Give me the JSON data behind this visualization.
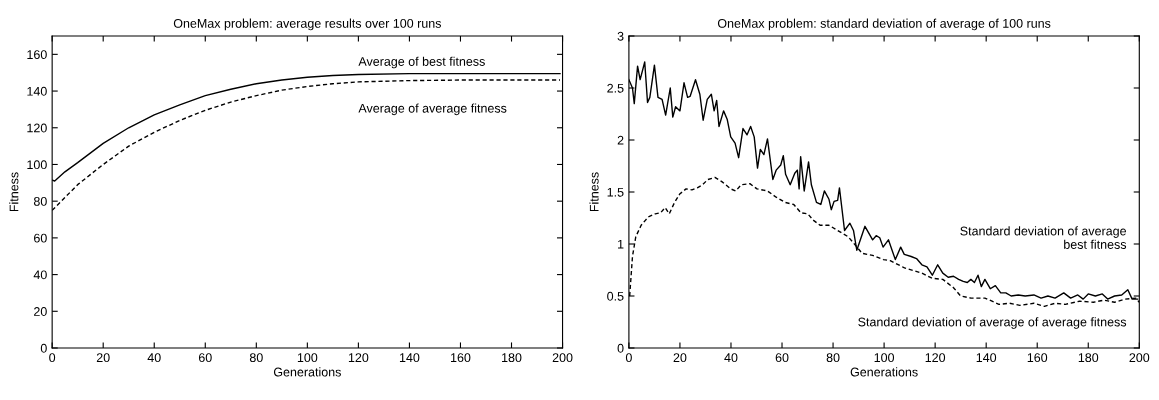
{
  "chart_data": [
    {
      "type": "line",
      "title": "OneMax problem: average results over 100 runs",
      "xlabel": "Generations",
      "ylabel": "Fitness",
      "xlim": [
        0,
        200
      ],
      "xticks": [
        0,
        20,
        40,
        60,
        80,
        100,
        120,
        140,
        160,
        180,
        200
      ],
      "ylim": [
        0,
        170
      ],
      "yticks": [
        0,
        20,
        40,
        60,
        80,
        100,
        120,
        140,
        160
      ],
      "grid": false,
      "legend": "top right",
      "marker": "none",
      "series": [
        {
          "name": "Average of best fitness",
          "color": "#000000",
          "line_style": "solid",
          "x": [
            0,
            1,
            5,
            10,
            20,
            30,
            40,
            50,
            60,
            70,
            80,
            90,
            100,
            110,
            120,
            140,
            160,
            199
          ],
          "values": [
            91.5,
            91,
            96,
            101,
            111.5,
            120,
            127,
            132.5,
            137.5,
            141,
            144,
            146,
            147.5,
            148.5,
            149,
            149.5,
            149.5,
            149.5
          ]
        },
        {
          "name": "Average of average fitness",
          "color": "#000000",
          "line_style": "dashed",
          "x": [
            0,
            5,
            10,
            20,
            30,
            40,
            50,
            60,
            70,
            80,
            90,
            100,
            110,
            120,
            140,
            160,
            199
          ],
          "values": [
            75,
            82,
            89,
            100,
            110,
            117.5,
            124,
            129.5,
            134,
            137.5,
            140.5,
            142.5,
            144,
            145,
            145.7,
            146,
            146
          ]
        }
      ]
    },
    {
      "type": "line",
      "title": "OneMax problem: standard deviation of average of 100 runs",
      "xlabel": "Generations",
      "ylabel": "Fitness",
      "xlim": [
        0,
        200
      ],
      "xticks": [
        0,
        20,
        40,
        60,
        80,
        100,
        120,
        140,
        160,
        180,
        200
      ],
      "ylim": [
        0,
        3
      ],
      "yticks": [
        0,
        0.5,
        1,
        1.5,
        2,
        2.5,
        3
      ],
      "grid": false,
      "legend": "right",
      "marker": "none",
      "series": [
        {
          "name": "Standard deviation of average\nbest fitness",
          "color": "#000000",
          "line_style": "solid",
          "x": [
            0,
            1.4,
            2.1,
            3.4,
            4.4,
            6.2,
            7.3,
            8.2,
            10,
            11.4,
            13,
            14.4,
            16.2,
            17.2,
            18.3,
            20,
            21.6,
            23,
            24,
            26.1,
            27.8,
            29.1,
            30.7,
            32.3,
            33.4,
            34.4,
            35.3,
            37.1,
            38.5,
            39.9,
            41.6,
            43,
            44.7,
            46.3,
            47.7,
            49.1,
            50.4,
            51.5,
            52.9,
            54.3,
            56.4,
            57.7,
            59.5,
            60.5,
            61.4,
            63.2,
            65,
            66,
            66.7,
            67.3,
            68.7,
            70.4,
            71.5,
            73.5,
            75.2,
            76.6,
            78.4,
            79.3,
            80.4,
            81.8,
            82.5,
            84.5,
            86.6,
            88,
            89.3,
            90.7,
            92.5,
            95.5,
            96.9,
            98.3,
            99.6,
            101.7,
            104.4,
            106.5,
            107.9,
            110.6,
            112.7,
            114.8,
            116.8,
            118.9,
            121,
            123,
            125.1,
            127.2,
            129.2,
            131,
            132.6,
            134,
            135.4,
            136.8,
            138.1,
            139.5,
            141.6,
            143.6,
            145.7,
            147.7,
            149.8,
            152.6,
            155.3,
            158.7,
            161.5,
            164.2,
            167,
            170.4,
            173.1,
            175.9,
            178,
            180,
            182.8,
            185.5,
            187.6,
            190.3,
            193.1,
            195.5,
            197.2,
            199.3
          ],
          "values": [
            2.58,
            2.5,
            2.35,
            2.71,
            2.58,
            2.75,
            2.36,
            2.41,
            2.72,
            2.41,
            2.39,
            2.24,
            2.5,
            2.22,
            2.32,
            2.28,
            2.55,
            2.41,
            2.42,
            2.58,
            2.44,
            2.19,
            2.39,
            2.44,
            2.28,
            2.38,
            2.13,
            2.28,
            2.2,
            2.03,
            1.97,
            1.83,
            2.11,
            2.05,
            2.13,
            2.03,
            1.73,
            1.91,
            1.86,
            2.01,
            1.62,
            1.71,
            1.76,
            1.85,
            1.67,
            1.57,
            1.68,
            1.71,
            1.53,
            1.84,
            1.51,
            1.79,
            1.57,
            1.4,
            1.38,
            1.51,
            1.43,
            1.33,
            1.41,
            1.42,
            1.54,
            1.13,
            1.2,
            1.13,
            0.94,
            1.04,
            1.17,
            1.04,
            1.08,
            1.06,
            0.97,
            1.04,
            0.85,
            0.97,
            0.9,
            0.88,
            0.86,
            0.8,
            0.78,
            0.7,
            0.8,
            0.72,
            0.68,
            0.69,
            0.66,
            0.64,
            0.63,
            0.66,
            0.63,
            0.7,
            0.59,
            0.66,
            0.57,
            0.6,
            0.53,
            0.53,
            0.5,
            0.51,
            0.5,
            0.51,
            0.48,
            0.5,
            0.48,
            0.53,
            0.48,
            0.51,
            0.47,
            0.52,
            0.5,
            0.52,
            0.47,
            0.5,
            0.51,
            0.56,
            0.47,
            0.47
          ]
        },
        {
          "name": "Standard deviation of average of average fitness",
          "color": "#000000",
          "line_style": "dashed",
          "x": [
            0.3,
            1.4,
            2.7,
            4.8,
            7.6,
            10.3,
            12.4,
            14.2,
            15.8,
            17.9,
            19.9,
            22.4,
            24.7,
            26.8,
            28.9,
            30.9,
            33.7,
            36.4,
            39.9,
            41.9,
            44,
            47.4,
            50.2,
            54.3,
            57.7,
            61.2,
            64.6,
            67.4,
            70.1,
            72.2,
            74.9,
            78.4,
            81.8,
            85.9,
            88.7,
            91.4,
            95.5,
            99.7,
            102.4,
            108,
            114.8,
            118.9,
            123,
            127.2,
            130,
            134,
            139.5,
            142.3,
            145,
            149.2,
            153.2,
            158.7,
            162.8,
            167,
            171,
            176.6,
            182,
            186.2,
            190.3,
            194.4,
            198.6,
            200
          ],
          "values": [
            0.5,
            0.88,
            1.07,
            1.18,
            1.26,
            1.29,
            1.3,
            1.35,
            1.29,
            1.4,
            1.48,
            1.53,
            1.52,
            1.54,
            1.57,
            1.62,
            1.64,
            1.6,
            1.53,
            1.51,
            1.57,
            1.58,
            1.53,
            1.51,
            1.45,
            1.4,
            1.38,
            1.3,
            1.29,
            1.23,
            1.18,
            1.18,
            1.13,
            1.07,
            0.99,
            0.91,
            0.89,
            0.85,
            0.84,
            0.77,
            0.72,
            0.67,
            0.66,
            0.58,
            0.5,
            0.48,
            0.48,
            0.45,
            0.42,
            0.43,
            0.41,
            0.43,
            0.4,
            0.43,
            0.42,
            0.45,
            0.44,
            0.46,
            0.44,
            0.47,
            0.48,
            0.44
          ]
        }
      ]
    }
  ]
}
